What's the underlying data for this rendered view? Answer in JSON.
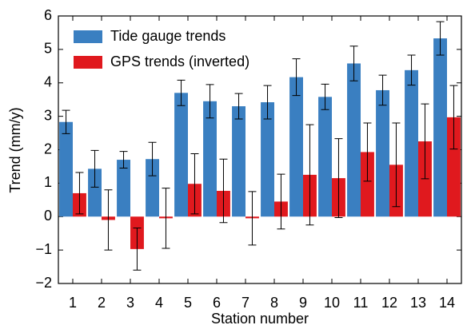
{
  "chart_data": {
    "type": "bar",
    "x_label": "Station number",
    "y_label": "Trend (mm/y)",
    "categories": [
      "1",
      "2",
      "3",
      "4",
      "5",
      "6",
      "7",
      "8",
      "9",
      "10",
      "11",
      "12",
      "13",
      "14"
    ],
    "series": [
      {
        "name": "Tide gauge trends",
        "color": "#3a7fc1",
        "values": [
          2.83,
          1.43,
          1.7,
          1.72,
          3.7,
          3.45,
          3.3,
          3.42,
          4.17,
          3.58,
          4.58,
          3.78,
          4.38,
          5.33
        ],
        "errors": [
          0.35,
          0.55,
          0.25,
          0.5,
          0.38,
          0.5,
          0.38,
          0.5,
          0.55,
          0.38,
          0.52,
          0.45,
          0.45,
          0.5
        ]
      },
      {
        "name": "GPS trends (inverted)",
        "color": "#e0191e",
        "values": [
          0.7,
          -0.1,
          -0.97,
          -0.05,
          0.98,
          0.77,
          -0.05,
          0.45,
          1.25,
          1.15,
          1.93,
          1.55,
          2.25,
          2.97
        ],
        "errors": [
          0.62,
          0.9,
          0.63,
          0.9,
          0.9,
          0.95,
          0.8,
          0.82,
          1.5,
          1.18,
          0.87,
          1.25,
          1.12,
          0.95
        ]
      }
    ],
    "ylim": [
      -2,
      6
    ],
    "yticks": [
      {
        "value": -2,
        "label": "−2"
      },
      {
        "value": -1,
        "label": "−1"
      },
      0,
      1,
      2,
      3,
      4,
      5,
      6
    ],
    "legend": "upper left"
  }
}
